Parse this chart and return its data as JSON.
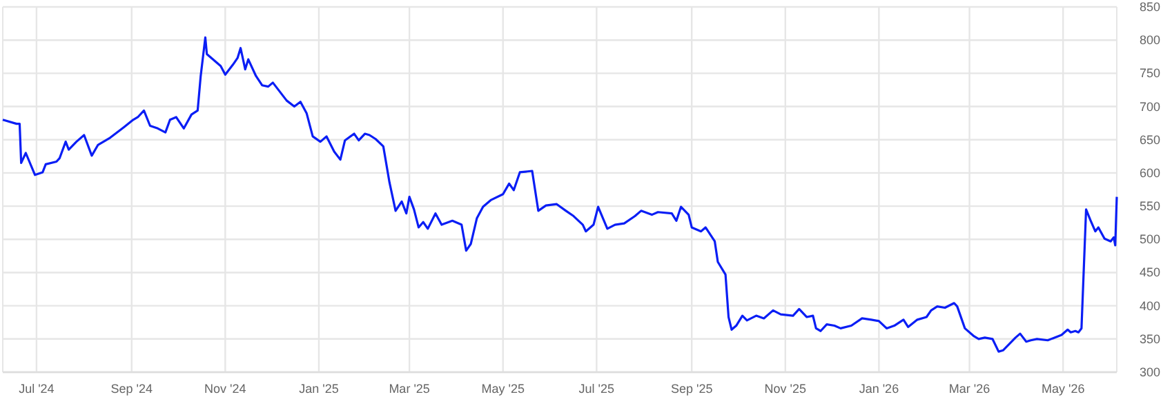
{
  "chart_data": {
    "type": "line",
    "x": [
      "2024-06-09",
      "2024-06-18",
      "2024-06-20",
      "2024-06-21",
      "2024-06-24",
      "2024-06-30",
      "2024-07-05",
      "2024-07-07",
      "2024-07-14",
      "2024-07-16",
      "2024-07-20",
      "2024-07-22",
      "2024-07-27",
      "2024-08-01",
      "2024-08-06",
      "2024-08-10",
      "2024-08-18",
      "2024-08-27",
      "2024-09-02",
      "2024-09-05",
      "2024-09-09",
      "2024-09-13",
      "2024-09-18",
      "2024-09-23",
      "2024-09-26",
      "2024-09-30",
      "2024-10-05",
      "2024-10-10",
      "2024-10-14",
      "2024-10-16",
      "2024-10-19",
      "2024-10-20",
      "2024-10-29",
      "2024-11-01",
      "2024-11-06",
      "2024-11-09",
      "2024-11-11",
      "2024-11-14",
      "2024-11-16",
      "2024-11-21",
      "2024-11-25",
      "2024-11-29",
      "2024-12-02",
      "2024-12-04",
      "2024-12-11",
      "2024-12-16",
      "2024-12-20",
      "2024-12-24",
      "2024-12-28",
      "2025-01-02",
      "2025-01-06",
      "2025-01-11",
      "2025-01-15",
      "2025-01-18",
      "2025-01-24",
      "2025-01-27",
      "2025-01-31",
      "2025-02-03",
      "2025-02-07",
      "2025-02-12",
      "2025-02-16",
      "2025-02-20",
      "2025-02-24",
      "2025-02-27",
      "2025-03-01",
      "2025-03-04",
      "2025-03-07",
      "2025-03-10",
      "2025-03-13",
      "2025-03-18",
      "2025-03-22",
      "2025-03-29",
      "2025-04-04",
      "2025-04-07",
      "2025-04-10",
      "2025-04-14",
      "2025-04-18",
      "2025-04-23",
      "2025-05-01",
      "2025-05-05",
      "2025-05-08",
      "2025-05-12",
      "2025-05-20",
      "2025-05-24",
      "2025-05-29",
      "2025-06-05",
      "2025-06-11",
      "2025-06-16",
      "2025-06-22",
      "2025-06-24",
      "2025-06-29",
      "2025-07-02",
      "2025-07-08",
      "2025-07-13",
      "2025-07-19",
      "2025-07-26",
      "2025-07-30",
      "2025-08-06",
      "2025-08-10",
      "2025-08-19",
      "2025-08-22",
      "2025-08-25",
      "2025-08-30",
      "2025-09-01",
      "2025-09-07",
      "2025-09-10",
      "2025-09-16",
      "2025-09-18",
      "2025-09-23",
      "2025-09-25",
      "2025-09-27",
      "2025-09-30",
      "2025-10-04",
      "2025-10-07",
      "2025-10-13",
      "2025-10-18",
      "2025-10-24",
      "2025-10-29",
      "2025-11-06",
      "2025-11-10",
      "2025-11-15",
      "2025-11-19",
      "2025-11-21",
      "2025-11-24",
      "2025-11-28",
      "2025-12-03",
      "2025-12-07",
      "2025-12-14",
      "2025-12-21",
      "2025-12-27",
      "2026-01-01",
      "2026-01-06",
      "2026-01-11",
      "2026-01-17",
      "2026-01-20",
      "2026-01-26",
      "2026-02-01",
      "2026-02-04",
      "2026-02-08",
      "2026-02-13",
      "2026-02-19",
      "2026-02-21",
      "2026-02-26",
      "2026-03-04",
      "2026-03-07",
      "2026-03-11",
      "2026-03-16",
      "2026-03-20",
      "2026-03-23",
      "2026-03-31",
      "2026-04-03",
      "2026-04-07",
      "2026-04-10",
      "2026-04-14",
      "2026-04-21",
      "2026-04-30",
      "2026-05-04",
      "2026-05-06",
      "2026-05-09",
      "2026-05-11",
      "2026-05-13",
      "2026-05-16",
      "2026-05-19",
      "2026-05-22",
      "2026-05-24",
      "2026-05-28",
      "2026-06-01",
      "2026-06-03",
      "2026-06-04",
      "2026-06-05"
    ],
    "series": [
      {
        "color": "#0a1ef5",
        "values": [
          680,
          674,
          674,
          615,
          630,
          597,
          601,
          613,
          617,
          622,
          647,
          635,
          647,
          657,
          626,
          642,
          653,
          669,
          680,
          684,
          694,
          671,
          667,
          661,
          680,
          684,
          667,
          688,
          694,
          746,
          804,
          779,
          761,
          748,
          763,
          773,
          788,
          756,
          771,
          746,
          732,
          730,
          736,
          730,
          709,
          700,
          707,
          690,
          655,
          647,
          655,
          632,
          620,
          649,
          659,
          649,
          659,
          657,
          651,
          640,
          586,
          543,
          557,
          539,
          564,
          545,
          518,
          526,
          516,
          539,
          522,
          528,
          522,
          483,
          493,
          532,
          549,
          559,
          568,
          584,
          574,
          601,
          603,
          543,
          551,
          553,
          543,
          535,
          522,
          512,
          522,
          549,
          516,
          522,
          524,
          535,
          543,
          537,
          541,
          539,
          528,
          549,
          537,
          518,
          512,
          518,
          497,
          466,
          447,
          383,
          364,
          370,
          385,
          378,
          385,
          381,
          393,
          387,
          385,
          395,
          383,
          385,
          366,
          362,
          372,
          370,
          366,
          370,
          381,
          379,
          377,
          366,
          370,
          379,
          368,
          379,
          383,
          393,
          399,
          397,
          404,
          399,
          366,
          354,
          350,
          352,
          350,
          331,
          333,
          352,
          358,
          346,
          348,
          350,
          348,
          356,
          364,
          360,
          362,
          360,
          366,
          545,
          528,
          512,
          518,
          501,
          497,
          503,
          491,
          564
        ]
      }
    ],
    "xlim": [
      "2024-06-09",
      "2026-06-05"
    ],
    "xticks": [
      {
        "value": "2024-07-01",
        "label": "Jul '24"
      },
      {
        "value": "2024-09-01",
        "label": "Sep '24"
      },
      {
        "value": "2024-11-01",
        "label": "Nov '24"
      },
      {
        "value": "2025-01-01",
        "label": "Jan '25"
      },
      {
        "value": "2025-03-01",
        "label": "Mar '25"
      },
      {
        "value": "2025-05-01",
        "label": "May '25"
      },
      {
        "value": "2025-07-01",
        "label": "Jul '25"
      },
      {
        "value": "2025-09-01",
        "label": "Sep '25"
      },
      {
        "value": "2025-11-01",
        "label": "Nov '25"
      },
      {
        "value": "2026-01-01",
        "label": "Jan '26"
      },
      {
        "value": "2026-03-01",
        "label": "Mar '26"
      },
      {
        "value": "2026-05-01",
        "label": "May '26"
      }
    ],
    "ylim": [
      300,
      850
    ],
    "yticks": [
      300,
      350,
      400,
      450,
      500,
      550,
      600,
      650,
      700,
      750,
      800,
      850
    ],
    "grid": true,
    "marker": "none",
    "line_style": "solid"
  }
}
